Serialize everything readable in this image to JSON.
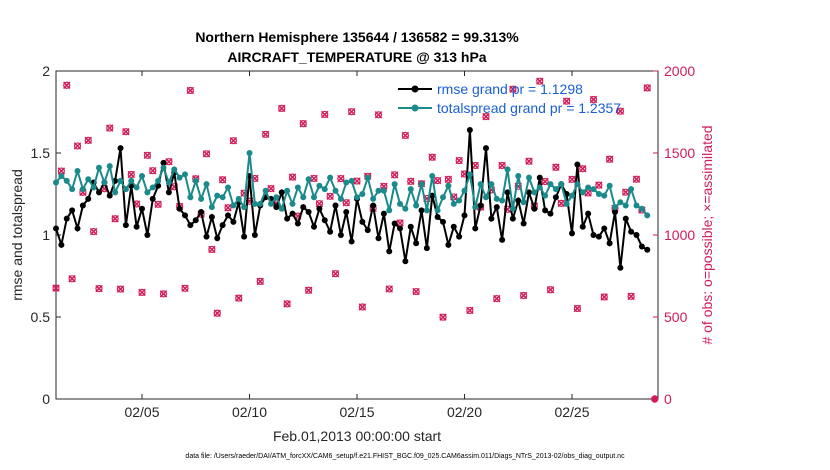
{
  "chart_data": {
    "type": "line",
    "title": "Northern Hemisphere 135644 / 136582 = 99.313%",
    "subtitle": "AIRCRAFT_TEMPERATURE @ 313 hPa",
    "xlabel": "Feb.01,2013 00:00:00 start",
    "ylabel": "rmse and totalspread",
    "y2label": "# of obs: o=possible; ×=assimilated",
    "xlim": [
      1,
      29
    ],
    "ylim": [
      0,
      2
    ],
    "y2lim": [
      0,
      2000
    ],
    "xticks": [
      5,
      10,
      15,
      20,
      25
    ],
    "xtick_labels": [
      "02/05",
      "02/10",
      "02/15",
      "02/20",
      "02/25"
    ],
    "yticks": [
      0,
      0.5,
      1,
      1.5,
      2
    ],
    "ytick_labels": [
      "0",
      "0.5",
      "1",
      "1.5",
      "2"
    ],
    "y2ticks": [
      0,
      500,
      1000,
      1500,
      2000
    ],
    "y2tick_labels": [
      "0",
      "500",
      "1000",
      "1500",
      "2000"
    ],
    "x": [
      1.0,
      1.25,
      1.5,
      1.75,
      2.0,
      2.25,
      2.5,
      2.75,
      3.0,
      3.25,
      3.5,
      3.75,
      4.0,
      4.25,
      4.5,
      4.75,
      5.0,
      5.25,
      5.5,
      5.75,
      6.0,
      6.25,
      6.5,
      6.75,
      7.0,
      7.25,
      7.5,
      7.75,
      8.0,
      8.25,
      8.5,
      8.75,
      9.0,
      9.25,
      9.5,
      9.75,
      10.0,
      10.25,
      10.5,
      10.75,
      11.0,
      11.25,
      11.5,
      11.75,
      12.0,
      12.25,
      12.5,
      12.75,
      13.0,
      13.25,
      13.5,
      13.75,
      14.0,
      14.25,
      14.5,
      14.75,
      15.0,
      15.25,
      15.5,
      15.75,
      16.0,
      16.25,
      16.5,
      16.75,
      17.0,
      17.25,
      17.5,
      17.75,
      18.0,
      18.25,
      18.5,
      18.75,
      19.0,
      19.25,
      19.5,
      19.75,
      20.0,
      20.25,
      20.5,
      20.75,
      21.0,
      21.25,
      21.5,
      21.75,
      22.0,
      22.25,
      22.5,
      22.75,
      23.0,
      23.25,
      23.5,
      23.75,
      24.0,
      24.25,
      24.5,
      24.75,
      25.0,
      25.25,
      25.5,
      25.75,
      26.0,
      26.25,
      26.5,
      26.75,
      27.0,
      27.25,
      27.5,
      27.75,
      28.0,
      28.25,
      28.5
    ],
    "series": [
      {
        "name": "rmse grand pr = 1.1298",
        "color": "#000000",
        "marker": "filled-circle",
        "values": [
          1.04,
          0.94,
          1.1,
          1.15,
          1.04,
          1.18,
          1.22,
          1.32,
          1.26,
          1.32,
          1.24,
          1.33,
          1.53,
          1.06,
          1.3,
          1.05,
          1.16,
          1.0,
          1.22,
          1.3,
          1.44,
          1.26,
          1.38,
          1.16,
          1.12,
          1.06,
          1.09,
          1.14,
          0.99,
          1.11,
          0.98,
          1.06,
          1.12,
          1.08,
          1.2,
          0.99,
          1.36,
          1.0,
          1.18,
          1.23,
          1.22,
          1.17,
          1.26,
          1.1,
          1.13,
          1.07,
          1.17,
          1.14,
          1.05,
          1.16,
          1.09,
          1.02,
          1.18,
          1.0,
          1.14,
          0.96,
          1.22,
          1.08,
          1.03,
          1.18,
          0.98,
          1.13,
          0.9,
          1.07,
          1.04,
          0.84,
          1.05,
          0.95,
          1.15,
          0.92,
          1.24,
          1.11,
          1.08,
          0.94,
          1.05,
          0.99,
          1.12,
          1.64,
          1.04,
          1.18,
          1.53,
          1.1,
          1.17,
          0.97,
          1.26,
          1.1,
          1.21,
          1.07,
          1.26,
          1.16,
          1.35,
          1.15,
          1.13,
          1.23,
          1.31,
          1.25,
          1.01,
          1.43,
          1.05,
          1.13,
          1.0,
          0.99,
          1.04,
          0.95,
          1.14,
          0.8,
          1.1,
          1.02,
          1.0,
          0.93,
          0.91
        ]
      },
      {
        "name": "totalspread grand pr = 1.2357",
        "color": "#1b8a8a",
        "marker": "filled-circle",
        "values": [
          1.32,
          1.36,
          1.33,
          1.28,
          1.39,
          1.28,
          1.34,
          1.29,
          1.41,
          1.32,
          1.42,
          1.26,
          1.33,
          1.28,
          1.33,
          1.29,
          1.36,
          1.26,
          1.29,
          1.33,
          1.41,
          1.32,
          1.4,
          1.35,
          1.37,
          1.23,
          1.33,
          1.22,
          1.31,
          1.17,
          1.24,
          1.23,
          1.29,
          1.18,
          1.22,
          1.17,
          1.5,
          1.19,
          1.19,
          1.27,
          1.19,
          1.23,
          1.16,
          1.27,
          1.19,
          1.29,
          1.23,
          1.34,
          1.23,
          1.3,
          1.28,
          1.35,
          1.27,
          1.22,
          1.32,
          1.33,
          1.23,
          1.25,
          1.35,
          1.22,
          1.27,
          1.27,
          1.15,
          1.31,
          1.19,
          1.16,
          1.28,
          1.18,
          1.31,
          1.15,
          1.36,
          1.15,
          1.23,
          1.3,
          1.19,
          1.21,
          1.27,
          1.37,
          1.17,
          1.31,
          1.23,
          1.31,
          1.22,
          1.21,
          1.4,
          1.16,
          1.36,
          1.2,
          1.35,
          1.26,
          1.29,
          1.24,
          1.31,
          1.28,
          1.31,
          1.19,
          1.24,
          1.31,
          1.26,
          1.29,
          1.28,
          1.25,
          1.24,
          1.3,
          1.17,
          1.2,
          1.18,
          1.28,
          1.18,
          1.16,
          1.12
        ]
      }
    ],
    "obs_possible": {
      "name": "possible",
      "marker": "open-circle",
      "color": "#d01c5a",
      "values": [
        676,
        1390,
        1913,
        733,
        1543,
        1260,
        1577,
        1021,
        673,
        1282,
        1652,
        1099,
        670,
        1630,
        1369,
        1189,
        650,
        1486,
        1392,
        1187,
        641,
        1447,
        1294,
        1174,
        675,
        1881,
        1343,
        1127,
        1495,
        912,
        523,
        1337,
        1166,
        1575,
        615,
        1255,
        1206,
        1345,
        717,
        1614,
        1283,
        1195,
        1772,
        580,
        1353,
        1115,
        1679,
        663,
        1345,
        1191,
        1735,
        1236,
        764,
        1344,
        1197,
        1752,
        1329,
        561,
        1358,
        1163,
        1733,
        1297,
        671,
        1367,
        1073,
        1607,
        1327,
        655,
        1313,
        1223,
        1474,
        1332,
        499,
        1339,
        1232,
        1454,
        1372,
        540,
        1424,
        1170,
        1722,
        1275,
        612,
        1424,
        1157,
        1889,
        1297,
        631,
        1450,
        1176,
        1938,
        1326,
        666,
        1413,
        1193,
        1816,
        1339,
        552,
        1404,
        1256,
        1826,
        1304,
        622,
        1462,
        1163,
        1755,
        1261,
        626,
        1340,
        1152,
        1897,
        1341,
        707,
        1563,
        1305
      ]
    },
    "obs_assimilated": {
      "name": "assimilated",
      "marker": "x",
      "color": "#d01c5a",
      "values": [
        676,
        1390,
        1913,
        733,
        1543,
        1260,
        1577,
        1021,
        673,
        1282,
        1652,
        1099,
        670,
        1630,
        1369,
        1189,
        650,
        1486,
        1392,
        1187,
        641,
        1447,
        1294,
        1174,
        675,
        1881,
        1343,
        1127,
        1495,
        912,
        523,
        1337,
        1166,
        1575,
        615,
        1255,
        1206,
        1345,
        717,
        1614,
        1283,
        1195,
        1772,
        580,
        1353,
        1115,
        1679,
        663,
        1345,
        1191,
        1735,
        1236,
        764,
        1344,
        1197,
        1752,
        1329,
        561,
        1358,
        1163,
        1733,
        1297,
        671,
        1367,
        1073,
        1607,
        1327,
        655,
        1313,
        1223,
        1474,
        1332,
        499,
        1339,
        1232,
        1454,
        1372,
        540,
        1424,
        1170,
        1722,
        1275,
        612,
        1424,
        1157,
        1889,
        1297,
        631,
        1450,
        1176,
        1938,
        1326,
        666,
        1413,
        1193,
        1816,
        1339,
        552,
        1404,
        1256,
        1826,
        1304,
        622,
        1462,
        1163,
        1755,
        1261,
        626,
        1340,
        1152,
        1897,
        1341,
        707,
        1563,
        1305
      ]
    },
    "extra_obs_point": {
      "x": 28.85,
      "y2": 0
    },
    "legend_position": "top-right",
    "grid": false
  },
  "footer": "data file: /Users/raeder/DAI/ATM_forcXX/CAM6_setup/f.e21.FHIST_BGC.f09_025.CAM6assim.011/Diags_NTrS_2013-02/obs_diag_output.nc",
  "colors": {
    "rmse": "#000000",
    "spread": "#1b8a8a",
    "obs": "#d01c5a",
    "legend_text": "#1a5fd6"
  }
}
